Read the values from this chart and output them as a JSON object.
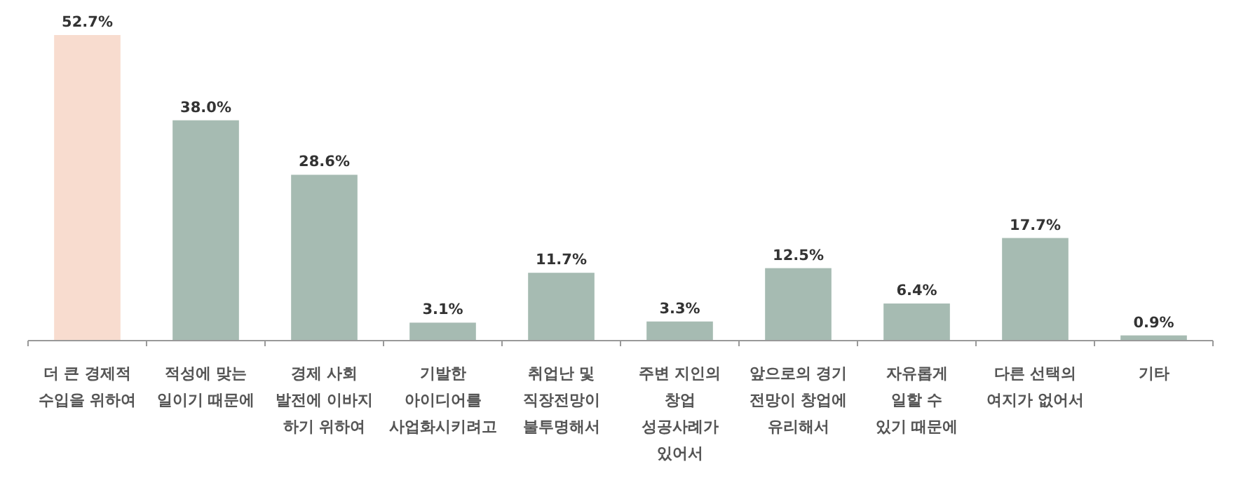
{
  "chart_data": {
    "type": "bar",
    "categories": [
      "더 큰 경제적\n수입을 위하여",
      "적성에 맞는\n일이기 때문에",
      "경제 사회\n발전에 이바지\n하기 위하여",
      "기발한\n아이디어를\n사업화시키려고",
      "취업난 및\n직장전망이\n불투명해서",
      "주변 지인의\n창업\n성공사례가\n있어서",
      "앞으로의 경기\n전망이 창업에\n유리해서",
      "자유롭게\n일할 수\n있기 때문에",
      "다른 선택의\n여지가 없어서",
      "기타"
    ],
    "values": [
      52.7,
      38.0,
      28.6,
      3.1,
      11.7,
      3.3,
      12.5,
      6.4,
      17.7,
      0.9
    ],
    "value_labels": [
      "52.7%",
      "38.0%",
      "28.6%",
      "3.1%",
      "11.7%",
      "3.3%",
      "12.5%",
      "6.4%",
      "17.7%",
      "0.9%"
    ],
    "colors": [
      "#f8dccf",
      "#a6bbb2",
      "#a6bbb2",
      "#a6bbb2",
      "#a6bbb2",
      "#a6bbb2",
      "#a6bbb2",
      "#a6bbb2",
      "#a6bbb2",
      "#a6bbb2"
    ]
  }
}
